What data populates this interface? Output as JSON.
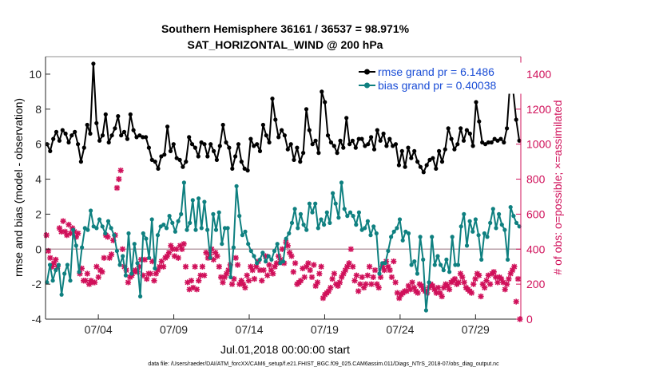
{
  "chart_data": {
    "type": "line",
    "title": "Southern Hemisphere 36161 / 36537 = 98.971%",
    "subtitle": "SAT_HORIZONTAL_WIND @ 200 hPa",
    "xlabel": "Jul.01,2018 00:00:00 start",
    "ylabel_left": "rmse and bias (model - observation)",
    "ylabel_right": "# of obs: o=possible; ×=assimilated",
    "footer": "data file: /Users/raeder/DAI/ATM_forcXX/CAM6_setup/f.e21.FHIST_BGC.f09_025.CAM6assim.011/Diags_NTrS_2018-07/obs_diag_output.nc",
    "xlim": [
      0,
      31.5
    ],
    "ylim_left": [
      -4,
      11
    ],
    "ylim_right": [
      0,
      1500
    ],
    "x_ticks": [
      {
        "value": 3.5,
        "label": "07/04"
      },
      {
        "value": 8.5,
        "label": "07/09"
      },
      {
        "value": 13.5,
        "label": "07/14"
      },
      {
        "value": 18.5,
        "label": "07/19"
      },
      {
        "value": 23.5,
        "label": "07/24"
      },
      {
        "value": 28.5,
        "label": "07/29"
      }
    ],
    "y_ticks_left": [
      {
        "value": -4,
        "label": "-4"
      },
      {
        "value": -2,
        "label": "-2"
      },
      {
        "value": 0,
        "label": "0"
      },
      {
        "value": 2,
        "label": "2"
      },
      {
        "value": 4,
        "label": "4"
      },
      {
        "value": 6,
        "label": "6"
      },
      {
        "value": 8,
        "label": "8"
      },
      {
        "value": 10,
        "label": "10"
      }
    ],
    "y_ticks_right": [
      {
        "value": 0,
        "label": "0"
      },
      {
        "value": 200,
        "label": "200"
      },
      {
        "value": 400,
        "label": "400"
      },
      {
        "value": 600,
        "label": "600"
      },
      {
        "value": 800,
        "label": "800"
      },
      {
        "value": 1000,
        "label": "1000"
      },
      {
        "value": 1200,
        "label": "1200"
      },
      {
        "value": 1400,
        "label": "1400"
      }
    ],
    "zero_line": 0,
    "colors": {
      "rmse": "#000000",
      "bias": "#0f8080",
      "obs": "#d0105a",
      "zero": "#b8a0a8",
      "legend_text": "#1a4dd6"
    },
    "series": [
      {
        "name": "rmse",
        "legend": "rmse grand pr = 6.1486",
        "axis": "left",
        "values": [
          6.0,
          5.6,
          6.3,
          6.7,
          6.2,
          6.8,
          6.6,
          6.1,
          6.5,
          6.7,
          6.0,
          5.0,
          5.8,
          7.1,
          6.6,
          10.6,
          7.2,
          6.2,
          6.5,
          7.7,
          6.1,
          6.5,
          6.9,
          7.6,
          6.5,
          6.7,
          6.3,
          7.7,
          6.8,
          6.4,
          6.5,
          6.4,
          6.4,
          5.8,
          5.1,
          5.0,
          4.6,
          5.3,
          5.4,
          7.0,
          5.6,
          6.0,
          5.2,
          5.1,
          4.7,
          5.0,
          6.4,
          6.0,
          5.8,
          5.3,
          6.1,
          6.0,
          5.3,
          6.0,
          5.6,
          5.1,
          5.9,
          7.1,
          6.1,
          5.8,
          4.6,
          5.3,
          6.0,
          5.0,
          4.6,
          4.5,
          6.3,
          5.9,
          6.0,
          5.6,
          7.1,
          6.5,
          6.1,
          8.6,
          7.4,
          6.4,
          6.8,
          6.5,
          5.7,
          6.0,
          5.1,
          5.8,
          5.0,
          5.5,
          8.0,
          6.8,
          6.0,
          6.2,
          5.5,
          9.0,
          8.4,
          6.5,
          6.1,
          5.9,
          5.5,
          6.2,
          5.8,
          7.5,
          6.0,
          6.2,
          5.8,
          6.3,
          6.3,
          5.9,
          6.0,
          6.4,
          5.7,
          6.8,
          6.2,
          6.6,
          5.9,
          6.3,
          5.9,
          6.0,
          4.8,
          5.6,
          4.7,
          5.8,
          5.2,
          5.6,
          5.0,
          4.7,
          4.4,
          4.8,
          5.1,
          5.2,
          4.6,
          5.6,
          5.0,
          5.7,
          6.9,
          6.3,
          5.7,
          6.0,
          6.9,
          6.2,
          6.8,
          6.6,
          5.9,
          8.4,
          7.3,
          6.1,
          6.0,
          6.1,
          6.1,
          6.3,
          6.2,
          6.3,
          6.1,
          6.9,
          9.5,
          9.1,
          7.4,
          6.2
        ]
      },
      {
        "name": "bias",
        "legend": "bias grand pr = 0.40038",
        "axis": "left",
        "values": [
          -1.9,
          -0.9,
          -1.8,
          -1.2,
          -0.9,
          -2.6,
          -1.4,
          -0.9,
          -1.8,
          1.1,
          0.2,
          -1.3,
          0.1,
          1.2,
          1.1,
          2.2,
          1.3,
          1.2,
          1.7,
          1.3,
          0.9,
          1.6,
          1.2,
          0.8,
          -0.1,
          -0.9,
          -0.4,
          -1.5,
          0.9,
          -1.4,
          0.3,
          -0.8,
          -2.7,
          0.9,
          0.6,
          -0.5,
          1.7,
          -1.1,
          0.8,
          1.3,
          1.4,
          1.2,
          1.9,
          1.5,
          1.0,
          1.6,
          2.0,
          3.8,
          1.1,
          1.5,
          2.8,
          1.1,
          2.9,
          1.2,
          2.7,
          1.1,
          -0.5,
          2.0,
          1.1,
          2.1,
          0.3,
          1.2,
          1.2,
          -1.6,
          0.1,
          3.6,
          1.9,
          0.8,
          1.0,
          0.3,
          -0.1,
          -0.4,
          -0.8,
          -0.6,
          -0.2,
          -0.7,
          -0.4,
          -0.6,
          -0.1,
          0.3,
          -0.8,
          -0.7,
          0.6,
          0.9,
          1.5,
          2.3,
          1.2,
          2.0,
          1.4,
          1.1,
          2.6,
          2.1,
          2.6,
          1.2,
          1.7,
          1.4,
          2.1,
          1.5,
          3.2,
          2.6,
          1.8,
          3.8,
          2.3,
          1.9,
          2.1,
          1.9,
          1.4,
          2.1,
          1.1,
          1.2,
          1.6,
          0.8,
          1.3,
          0.9,
          -1.4,
          -0.8,
          -0.8,
          -0.1,
          0.7,
          1.0,
          1.2,
          1.7,
          0.5,
          1.0,
          0.9,
          -0.9,
          -0.7,
          -1.4,
          0.7,
          -0.6,
          -3.5,
          -1.9,
          0.7,
          -0.9,
          -0.4,
          -0.9,
          -1.2,
          -0.6,
          -1.3,
          0.7,
          -0.9,
          -0.9,
          1.3,
          2.0,
          0.2,
          1.6,
          1.0,
          1.7,
          0.8,
          -0.6,
          0.9,
          0.7,
          1.5,
          2.3,
          1.2,
          2.0,
          1.4,
          1.1,
          -0.6,
          2.4,
          1.9,
          1.5,
          1.3
        ]
      },
      {
        "name": "obs assimilated",
        "axis": "right",
        "values": [
          480,
          390,
          350,
          300,
          320,
          340,
          300,
          520,
          500,
          560,
          500,
          480,
          540,
          490,
          520,
          500,
          470,
          490,
          260,
          290,
          220,
          220,
          260,
          200,
          220,
          210,
          210,
          300,
          240,
          280,
          270,
          350,
          480,
          470,
          350,
          370,
          450,
          480,
          750,
          800,
          850,
          400,
          300,
          280,
          210,
          240,
          250,
          270,
          280,
          270,
          300,
          340,
          250,
          340,
          230,
          260,
          260,
          330,
          220,
          260,
          280,
          300,
          330,
          300,
          350,
          360,
          380,
          420,
          400,
          360,
          400,
          350,
          420,
          400,
          430,
          300,
          210,
          170,
          220,
          180,
          300,
          170,
          220,
          250,
          300,
          250,
          380,
          350,
          370,
          400,
          340,
          380,
          360,
          300,
          240,
          210,
          240,
          260,
          280,
          310,
          200,
          230,
          350,
          310,
          200,
          220,
          200,
          180,
          250,
          220,
          300,
          280,
          230,
          300,
          330,
          280,
          220,
          280,
          360,
          250,
          310,
          280,
          260,
          300,
          320,
          360,
          340,
          400,
          320,
          440,
          420,
          380,
          360,
          270,
          320,
          200,
          210,
          220,
          290,
          240,
          300,
          320,
          280,
          240,
          310,
          190,
          210,
          260,
          300,
          120,
          140,
          150,
          160,
          180,
          230,
          260,
          200,
          190,
          210,
          240,
          260,
          280,
          300,
          320,
          400,
          300,
          220,
          250,
          160,
          200,
          240,
          180,
          200,
          250,
          300,
          200,
          240,
          280,
          200,
          180,
          240,
          300,
          280,
          330,
          300,
          280,
          240,
          330,
          210,
          150,
          120,
          140,
          150,
          160,
          160,
          190,
          170,
          210,
          180,
          160,
          150,
          200,
          190,
          170,
          160,
          150,
          180,
          200,
          190,
          170,
          150,
          180,
          150,
          130,
          180,
          200,
          190,
          170,
          210,
          220,
          230,
          200,
          210,
          260,
          240,
          210,
          180,
          170,
          160,
          150,
          200,
          230,
          260,
          250,
          130,
          200,
          180,
          220,
          250,
          200,
          260,
          270,
          240,
          210,
          240,
          230,
          210,
          170,
          200,
          230,
          260,
          280,
          300,
          100,
          230,
          0
        ]
      }
    ]
  }
}
